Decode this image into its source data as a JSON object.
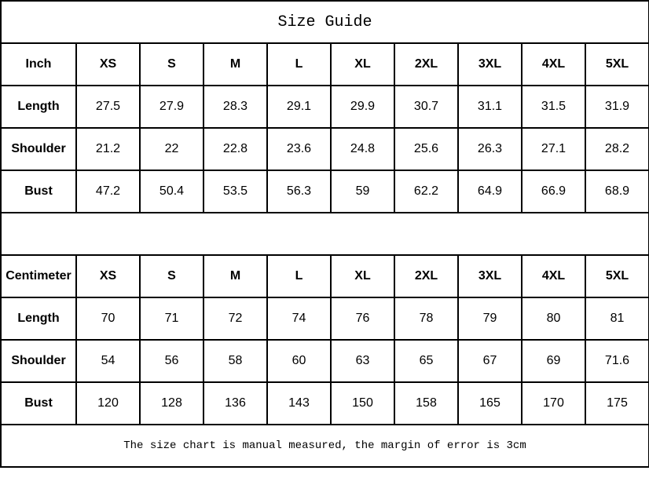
{
  "title": "Size Guide",
  "sizes": [
    "XS",
    "S",
    "M",
    "L",
    "XL",
    "2XL",
    "3XL",
    "4XL",
    "5XL"
  ],
  "tables": [
    {
      "unit": "Inch",
      "rows": [
        {
          "label": "Length",
          "values": [
            "27.5",
            "27.9",
            "28.3",
            "29.1",
            "29.9",
            "30.7",
            "31.1",
            "31.5",
            "31.9"
          ]
        },
        {
          "label": "Shoulder",
          "values": [
            "21.2",
            "22",
            "22.8",
            "23.6",
            "24.8",
            "25.6",
            "26.3",
            "27.1",
            "28.2"
          ]
        },
        {
          "label": "Bust",
          "values": [
            "47.2",
            "50.4",
            "53.5",
            "56.3",
            "59",
            "62.2",
            "64.9",
            "66.9",
            "68.9"
          ]
        }
      ]
    },
    {
      "unit": "Centimeter",
      "rows": [
        {
          "label": "Length",
          "values": [
            "70",
            "71",
            "72",
            "74",
            "76",
            "78",
            "79",
            "80",
            "81"
          ]
        },
        {
          "label": "Shoulder",
          "values": [
            "54",
            "56",
            "58",
            "60",
            "63",
            "65",
            "67",
            "69",
            "71.6"
          ]
        },
        {
          "label": "Bust",
          "values": [
            "120",
            "128",
            "136",
            "143",
            "150",
            "158",
            "165",
            "170",
            "175"
          ]
        }
      ]
    }
  ],
  "note": "The size chart is manual measured, the margin of error is 3cm"
}
